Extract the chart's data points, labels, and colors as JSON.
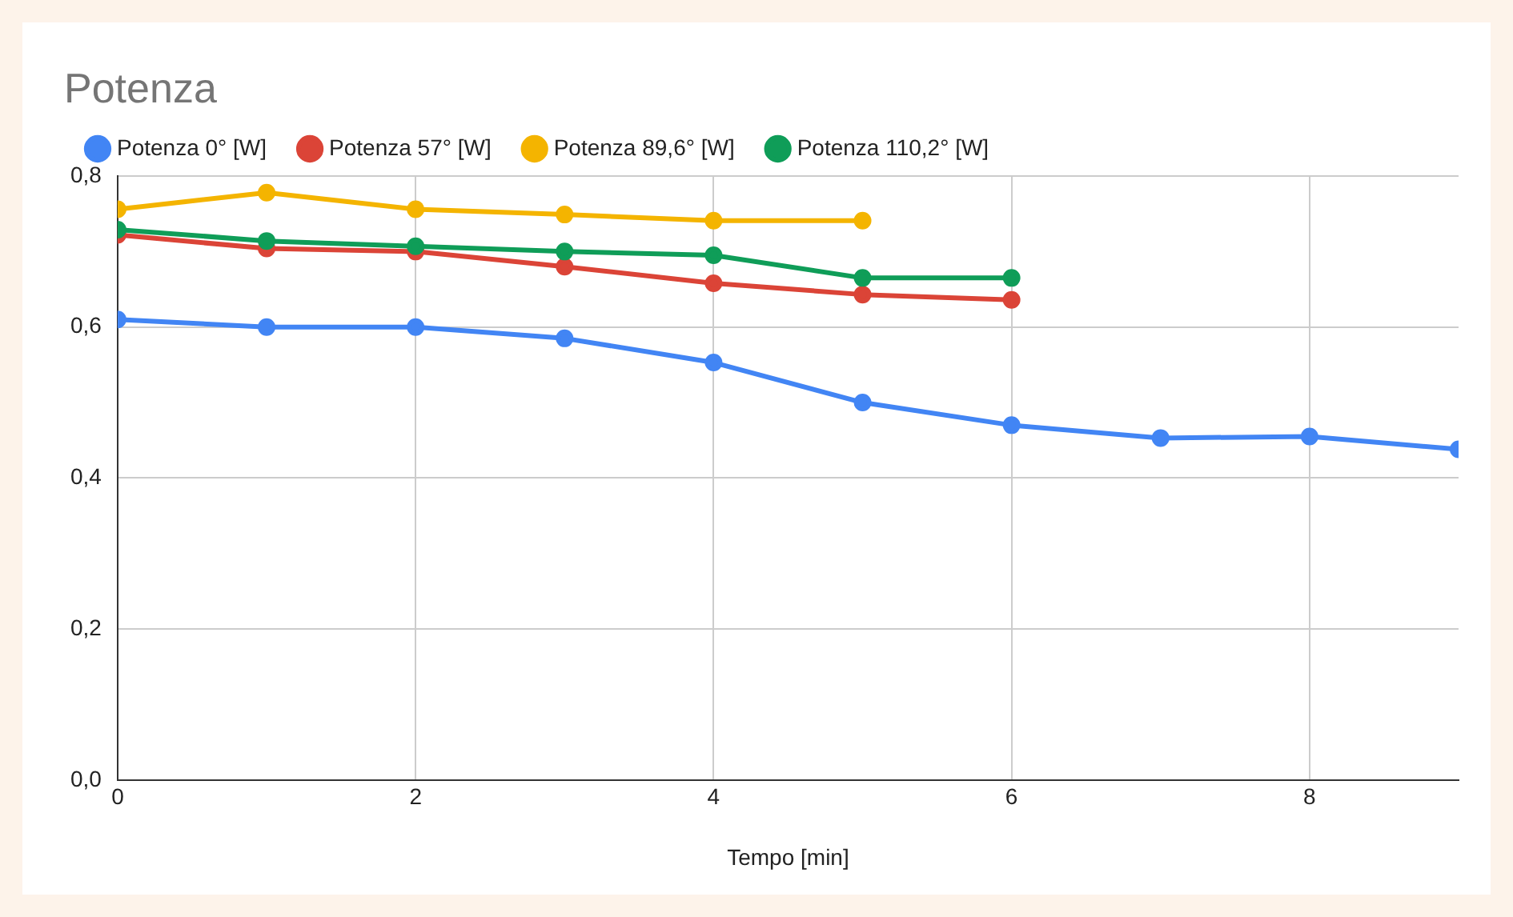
{
  "chart_data": {
    "type": "line",
    "title": "Potenza",
    "xlabel": "Tempo [min]",
    "x": [
      0,
      1,
      2,
      3,
      4,
      5,
      6,
      7,
      8,
      9
    ],
    "xlim": [
      0,
      9
    ],
    "xticks": [
      0,
      2,
      4,
      6,
      8
    ],
    "ylim": [
      0,
      0.8
    ],
    "yticks": [
      {
        "value": 0,
        "label": "0,0"
      },
      {
        "value": 0.2,
        "label": "0,2"
      },
      {
        "value": 0.4,
        "label": "0,4"
      },
      {
        "value": 0.6,
        "label": "0,6"
      },
      {
        "value": 0.8,
        "label": "0,8"
      }
    ],
    "grid": true,
    "legend": "top left",
    "marker": "circle",
    "line_style": "solid",
    "series": [
      {
        "name": "Potenza 0° [W]",
        "color": "#4285f4",
        "values": [
          0.61,
          0.6,
          0.6,
          0.585,
          0.553,
          0.5,
          0.47,
          0.453,
          0.455,
          0.438
        ]
      },
      {
        "name": "Potenza 57° [W]",
        "color": "#db4437",
        "values": [
          0.722,
          0.704,
          0.7,
          0.68,
          0.658,
          0.643,
          0.636,
          null,
          null,
          null
        ]
      },
      {
        "name": "Potenza 89,6° [W]",
        "color": "#f4b400",
        "values": [
          0.756,
          0.778,
          0.756,
          0.749,
          0.741,
          0.741,
          null,
          null,
          null,
          null
        ]
      },
      {
        "name": "Potenza 110,2° [W]",
        "color": "#0f9d58",
        "values": [
          0.729,
          0.714,
          0.707,
          0.7,
          0.695,
          0.665,
          0.665,
          null,
          null,
          null
        ]
      }
    ]
  }
}
